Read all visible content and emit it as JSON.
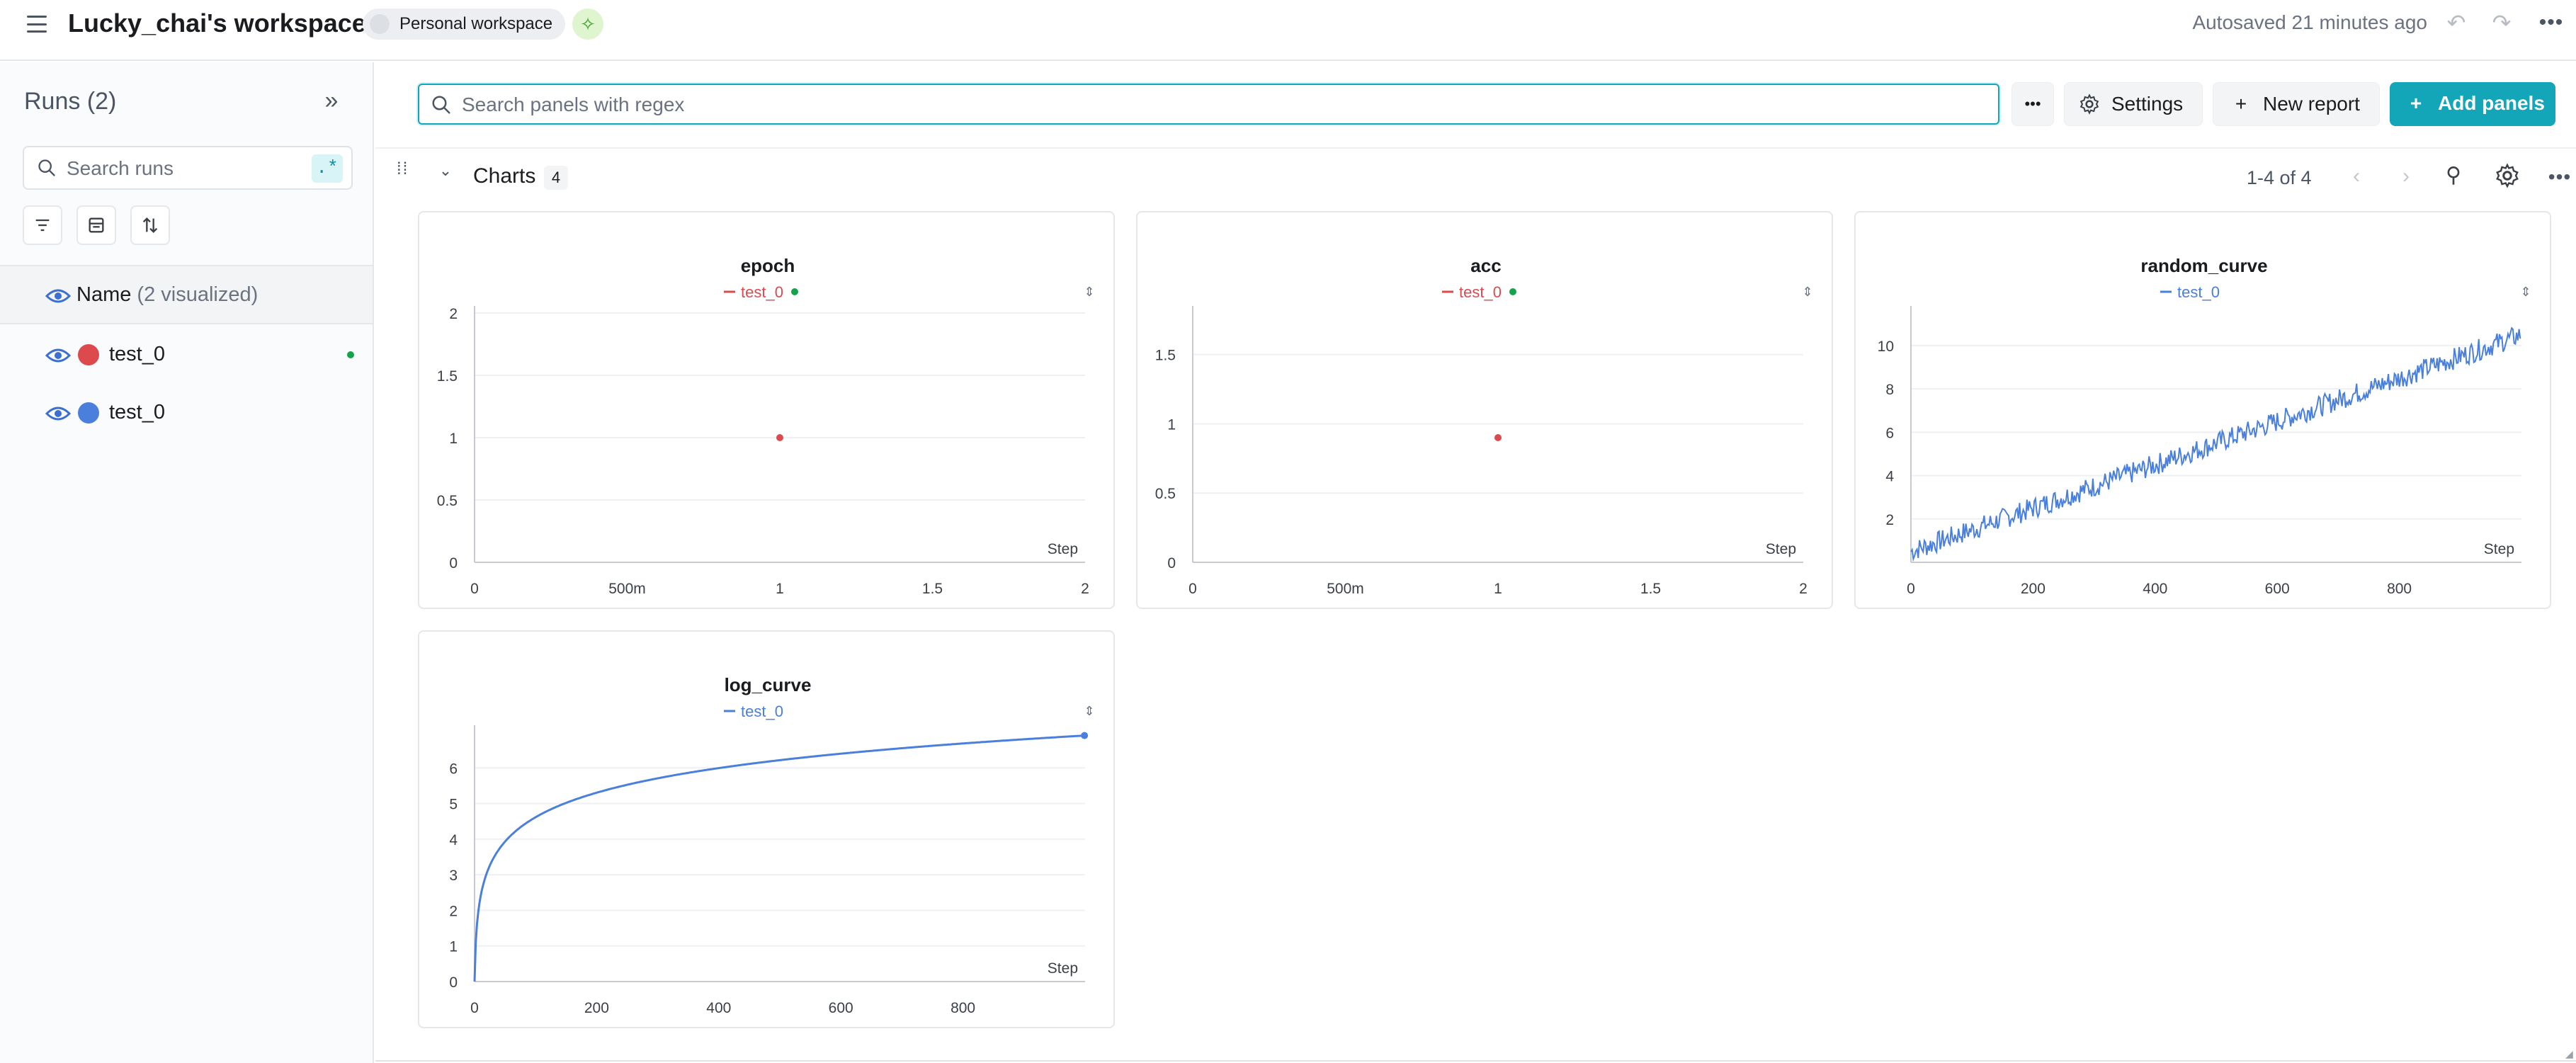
{
  "header": {
    "title": "Lucky_chai's workspace",
    "badge": "Personal workspace",
    "autosaved": "Autosaved 21 minutes ago"
  },
  "sidebar": {
    "title": "Runs (2)",
    "search_placeholder": "Search runs",
    "regex_label": ".*",
    "header_label": "Name",
    "header_sub": "(2 visualized)",
    "runs": [
      {
        "name": "test_0",
        "color": "#dc4a4e",
        "active": true
      },
      {
        "name": "test_0",
        "color": "#4a7fdb",
        "active": false
      }
    ]
  },
  "toolbar": {
    "search_placeholder": "Search panels with regex",
    "settings_label": "Settings",
    "new_report_label": "New report",
    "add_panels_label": "Add panels"
  },
  "section": {
    "title": "Charts",
    "count": "4",
    "pager": "1-4 of 4"
  },
  "icons": [
    "hamburger-icon",
    "sparkle-icon",
    "undo-icon",
    "redo-icon",
    "more-icon",
    "collapse-icon",
    "search-icon",
    "filter-icon",
    "columns-icon",
    "sort-icon",
    "eye-icon",
    "gear-icon",
    "plus-icon",
    "drag-icon",
    "chevron-down-icon",
    "chevron-left-icon",
    "chevron-right-icon",
    "wand-icon"
  ],
  "colors": {
    "accent": "#13a5b8",
    "run_red": "#dc4a4e",
    "run_blue": "#4a7fdb",
    "live_green": "#14a24a"
  },
  "chart_data": [
    {
      "type": "scatter",
      "title": "epoch",
      "legend": "test_0",
      "xlabel": "Step",
      "xlim": [
        0,
        2
      ],
      "ylim": [
        0,
        2
      ],
      "xticks": [
        "0",
        "500m",
        "1",
        "1.5",
        "2"
      ],
      "xtick_vals": [
        0,
        0.5,
        1,
        1.5,
        2
      ],
      "yticks": [
        "0",
        "0.5",
        "1",
        "1.5",
        "2"
      ],
      "ytick_vals": [
        0,
        0.5,
        1,
        1.5,
        2
      ],
      "series": [
        {
          "name": "test_0",
          "color": "#dc4a4e",
          "points": [
            [
              1,
              1
            ]
          ]
        }
      ]
    },
    {
      "type": "scatter",
      "title": "acc",
      "legend": "test_0",
      "xlabel": "Step",
      "xlim": [
        0,
        2
      ],
      "ylim": [
        0,
        1.8
      ],
      "xticks": [
        "0",
        "500m",
        "1",
        "1.5",
        "2"
      ],
      "xtick_vals": [
        0,
        0.5,
        1,
        1.5,
        2
      ],
      "yticks": [
        "0",
        "0.5",
        "1",
        "1.5"
      ],
      "ytick_vals": [
        0,
        0.5,
        1,
        1.5
      ],
      "series": [
        {
          "name": "test_0",
          "color": "#dc4a4e",
          "points": [
            [
              1,
              0.9
            ]
          ]
        }
      ]
    },
    {
      "type": "line",
      "title": "random_curve",
      "legend": "test_0",
      "xlabel": "Step",
      "xlim": [
        0,
        1000
      ],
      "ylim": [
        0,
        11.5
      ],
      "xticks": [
        "0",
        "200",
        "400",
        "600",
        "800"
      ],
      "xtick_vals": [
        0,
        200,
        400,
        600,
        800
      ],
      "yticks": [
        "2",
        "4",
        "6",
        "8",
        "10"
      ],
      "ytick_vals": [
        2,
        4,
        6,
        8,
        10
      ],
      "series": [
        {
          "name": "test_0",
          "color": "#4a7fdb",
          "function": "y = x/100 + noise",
          "x": [
            0,
            100,
            200,
            300,
            400,
            500,
            600,
            700,
            800,
            900,
            999
          ],
          "y": [
            0.5,
            1.3,
            2.2,
            3.1,
            4.1,
            5.0,
            6.0,
            7.0,
            8.0,
            9.1,
            10.4
          ]
        }
      ]
    },
    {
      "type": "line",
      "title": "log_curve",
      "legend": "test_0",
      "xlabel": "Step",
      "xlim": [
        0,
        1000
      ],
      "ylim": [
        0,
        7
      ],
      "xticks": [
        "0",
        "200",
        "400",
        "600",
        "800"
      ],
      "xtick_vals": [
        0,
        200,
        400,
        600,
        800
      ],
      "yticks": [
        "0",
        "1",
        "2",
        "3",
        "4",
        "5",
        "6"
      ],
      "ytick_vals": [
        0,
        1,
        2,
        3,
        4,
        5,
        6
      ],
      "series": [
        {
          "name": "test_0",
          "color": "#4a7fdb",
          "function": "y = ln(x+1)",
          "x": [
            0,
            10,
            50,
            100,
            200,
            400,
            600,
            800,
            999
          ],
          "y": [
            0,
            2.4,
            3.93,
            4.62,
            5.3,
            5.99,
            6.4,
            6.69,
            6.91
          ]
        }
      ]
    }
  ]
}
